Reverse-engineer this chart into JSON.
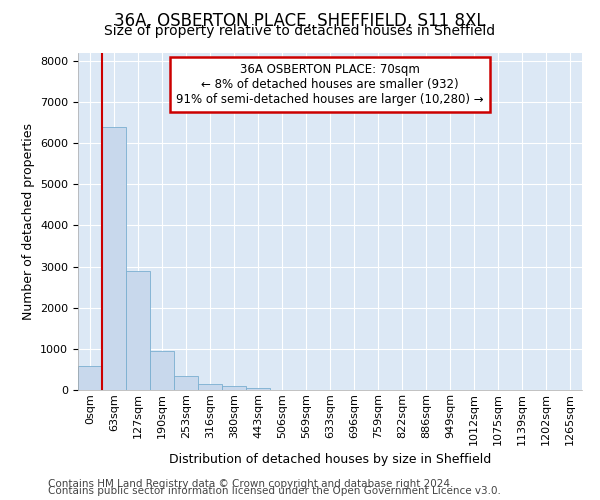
{
  "title1": "36A, OSBERTON PLACE, SHEFFIELD, S11 8XL",
  "title2": "Size of property relative to detached houses in Sheffield",
  "xlabel": "Distribution of detached houses by size in Sheffield",
  "ylabel": "Number of detached properties",
  "bar_values": [
    580,
    6400,
    2900,
    950,
    350,
    150,
    90,
    60,
    0,
    0,
    0,
    0,
    0,
    0,
    0,
    0,
    0,
    0,
    0,
    0,
    0
  ],
  "bar_labels": [
    "0sqm",
    "63sqm",
    "127sqm",
    "190sqm",
    "253sqm",
    "316sqm",
    "380sqm",
    "443sqm",
    "506sqm",
    "569sqm",
    "633sqm",
    "696sqm",
    "759sqm",
    "822sqm",
    "886sqm",
    "949sqm",
    "1012sqm",
    "1075sqm",
    "1139sqm",
    "1202sqm",
    "1265sqm"
  ],
  "bar_color": "#c8d8ec",
  "bar_edge_color": "#7aaed0",
  "vline_x": 1.0,
  "vline_color": "#cc0000",
  "annotation_line1": "36A OSBERTON PLACE: 70sqm",
  "annotation_line2": "← 8% of detached houses are smaller (932)",
  "annotation_line3": "91% of semi-detached houses are larger (10,280) →",
  "annotation_box_color": "#cc0000",
  "ylim": [
    0,
    8200
  ],
  "yticks": [
    0,
    1000,
    2000,
    3000,
    4000,
    5000,
    6000,
    7000,
    8000
  ],
  "footer_line1": "Contains HM Land Registry data © Crown copyright and database right 2024.",
  "footer_line2": "Contains public sector information licensed under the Open Government Licence v3.0.",
  "fig_bg_color": "#ffffff",
  "plot_bg_color": "#dce8f5",
  "grid_color": "#ffffff",
  "title1_fontsize": 12,
  "title2_fontsize": 10,
  "ylabel_fontsize": 9,
  "xlabel_fontsize": 9,
  "tick_fontsize": 8,
  "annot_fontsize": 8.5,
  "footer_fontsize": 7.5
}
